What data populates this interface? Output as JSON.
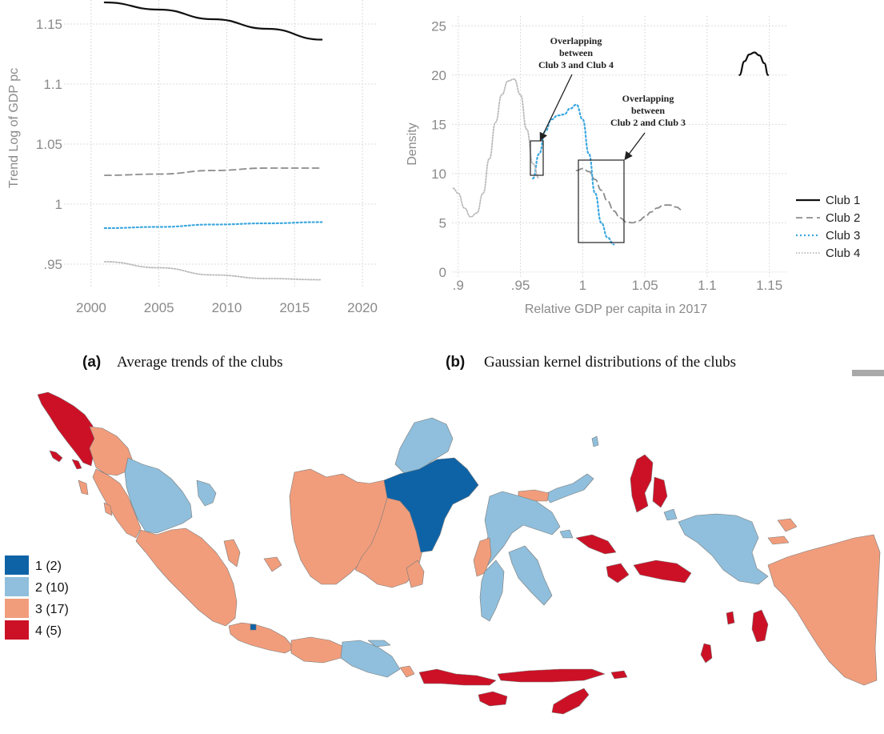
{
  "colors": {
    "club1": "#111111",
    "club2": "#8c8c8c",
    "club3": "#3ba7e0",
    "club4": "#b9b9b9",
    "map_club1": "#0e63a6",
    "map_club2": "#8fbfdc",
    "map_club3": "#f19d7c",
    "map_club4": "#cc1126"
  },
  "panel_a": {
    "caption_letter": "(a)",
    "caption_text": "Average trends of the clubs"
  },
  "panel_b": {
    "caption_letter": "(b)",
    "caption_text": "Gaussian kernel distributions of the clubs",
    "annotation_1": [
      "Overlapping",
      "between",
      "Club 3 and Club 4"
    ],
    "annotation_2": [
      "Overlapping",
      "between",
      "Club 2 and Club 3"
    ]
  },
  "map_legend": [
    {
      "label": "1 (2)",
      "color_key": "map_club1"
    },
    {
      "label": "2 (10)",
      "color_key": "map_club2"
    },
    {
      "label": "3 (17)",
      "color_key": "map_club3"
    },
    {
      "label": "4 (5)",
      "color_key": "map_club4"
    }
  ],
  "chart_data": [
    {
      "type": "line",
      "title": "",
      "xlabel": "",
      "ylabel": "Trend Log of GDP pc",
      "xlim": [
        1998,
        2021
      ],
      "ylim": [
        0.93,
        1.17
      ],
      "xticks": [
        2000,
        2005,
        2010,
        2015,
        2020
      ],
      "xtick_labels": [
        "2000",
        "2005",
        "2010",
        "2015",
        "2020"
      ],
      "yticks": [
        0.95,
        1.0,
        1.05,
        1.1,
        1.15
      ],
      "ytick_labels": [
        ".95",
        "1",
        "1.05",
        "1.1",
        "1.15"
      ],
      "grid": true,
      "series": [
        {
          "key": "club1",
          "x": [
            2001,
            2005,
            2009,
            2013,
            2017
          ],
          "values": [
            1.168,
            1.162,
            1.154,
            1.146,
            1.137
          ]
        },
        {
          "key": "club2",
          "x": [
            2001,
            2005,
            2009,
            2013,
            2017
          ],
          "values": [
            1.024,
            1.025,
            1.028,
            1.03,
            1.03
          ]
        },
        {
          "key": "club3",
          "x": [
            2001,
            2005,
            2009,
            2013,
            2017
          ],
          "values": [
            0.98,
            0.981,
            0.983,
            0.984,
            0.985
          ]
        },
        {
          "key": "club4",
          "x": [
            2001,
            2005,
            2009,
            2013,
            2017
          ],
          "values": [
            0.952,
            0.947,
            0.941,
            0.938,
            0.937
          ]
        }
      ]
    },
    {
      "type": "line",
      "title": "",
      "xlabel": "Relative GDP per capita in 2017",
      "ylabel": "Density",
      "xlim": [
        0.895,
        1.165
      ],
      "ylim": [
        -0.5,
        26
      ],
      "xticks": [
        0.9,
        0.95,
        1.0,
        1.05,
        1.1,
        1.15
      ],
      "xtick_labels": [
        ".9",
        ".95",
        "1",
        "1.05",
        "1.1",
        "1.15"
      ],
      "yticks": [
        0,
        5,
        10,
        15,
        20,
        25
      ],
      "ytick_labels": [
        "0",
        "5",
        "10",
        "15",
        "20",
        "25"
      ],
      "grid": true,
      "legend_position": "right",
      "series": [
        {
          "name": "Club 1",
          "key": "club1",
          "x": [
            1.126,
            1.13,
            1.134,
            1.138,
            1.142,
            1.146,
            1.149
          ],
          "values": [
            20.0,
            21.4,
            22.1,
            22.3,
            22.0,
            21.2,
            20.0
          ]
        },
        {
          "name": "Club 2",
          "key": "club2",
          "x": [
            0.995,
            1.0,
            1.005,
            1.01,
            1.015,
            1.02,
            1.025,
            1.03,
            1.035,
            1.04,
            1.045,
            1.05,
            1.055,
            1.06,
            1.065,
            1.07,
            1.075,
            1.08
          ],
          "values": [
            10.3,
            10.5,
            10.2,
            9.4,
            8.3,
            7.2,
            6.2,
            5.5,
            5.1,
            5.0,
            5.2,
            5.6,
            6.1,
            6.5,
            6.8,
            6.8,
            6.6,
            6.3
          ]
        },
        {
          "name": "Club 3",
          "key": "club3",
          "x": [
            0.96,
            0.965,
            0.97,
            0.975,
            0.98,
            0.985,
            0.99,
            0.995,
            1.0,
            1.005,
            1.01,
            1.015,
            1.02,
            1.025
          ],
          "values": [
            9.5,
            12.0,
            14.3,
            15.5,
            15.9,
            16.0,
            16.6,
            17.0,
            15.5,
            12.0,
            8.0,
            5.0,
            3.5,
            2.8
          ]
        },
        {
          "name": "Club 4",
          "key": "club4",
          "x": [
            0.896,
            0.9,
            0.905,
            0.91,
            0.915,
            0.92,
            0.925,
            0.93,
            0.935,
            0.94,
            0.945,
            0.95,
            0.955,
            0.96,
            0.965
          ],
          "values": [
            8.5,
            8.0,
            6.5,
            5.6,
            6.0,
            8.0,
            11.5,
            15.2,
            18.0,
            19.4,
            19.6,
            18.0,
            14.5,
            11.0,
            9.5
          ]
        }
      ]
    }
  ]
}
